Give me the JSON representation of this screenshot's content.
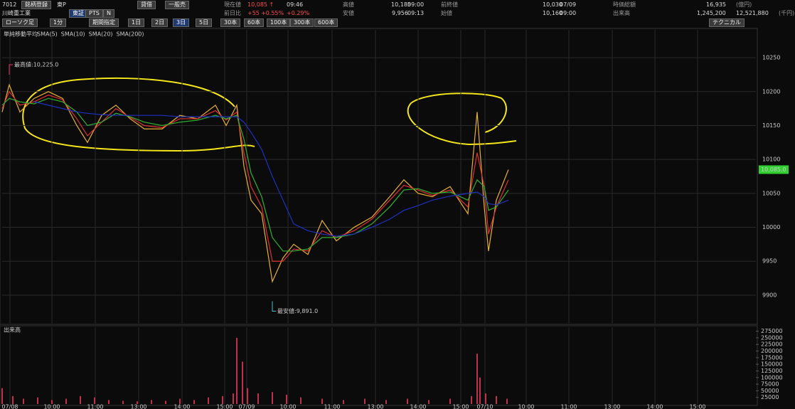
{
  "header": {
    "symbol": "7012",
    "register": "銘柄登録",
    "market": "東P",
    "name": "川崎重工業",
    "tabs": [
      "東証",
      "PTS",
      "N"
    ],
    "buttons": [
      "貸借",
      "一般売"
    ],
    "price_label": "現在値",
    "price": "10,085 ↑",
    "price_time": "09:46",
    "change_label": "前日比",
    "change": "+55",
    "change_pct": "+0.55%",
    "change_pct2": "+0.29%",
    "high_label": "高値",
    "high": "10,185",
    "high_time": "09:00",
    "low_label": "安値",
    "low": "9,956",
    "low_time": "09:13",
    "prev_label": "前終値",
    "prev": "10,030",
    "prev_date": "07/09",
    "open_label": "始値",
    "open": "10,160",
    "open_time": "09:00",
    "cap_label": "時価総額",
    "cap": "16,935",
    "cap_unit": "(億円)",
    "vol_label": "出来高",
    "vol": "1,245,200",
    "turnover": "12,521,880",
    "turnover_unit": "(千円)"
  },
  "toolbar": {
    "chart_kind": "ローソク足",
    "interval": "1分",
    "period": "期間指定",
    "ranges": [
      "1日",
      "2日",
      "3日",
      "5日",
      "30本",
      "60本",
      "100本",
      "300本",
      "600本"
    ],
    "technical": "テクニカル"
  },
  "chart_data": [
    {
      "type": "line",
      "title": "単純移動平均",
      "x": [
        0,
        10,
        25,
        45,
        65,
        85,
        105,
        120,
        140,
        160,
        180,
        200,
        225,
        250,
        275,
        300,
        315,
        330,
        340,
        350,
        365,
        380,
        395,
        410,
        430,
        450,
        470,
        495,
        520,
        545,
        565,
        585,
        605,
        630,
        655,
        668,
        678,
        684,
        695,
        712
      ],
      "series": [
        {
          "name": "SMA(5)",
          "color": "#e8b030",
          "values": [
            10170,
            10210,
            10170,
            10190,
            10200,
            10190,
            10150,
            10125,
            10165,
            10180,
            10160,
            10145,
            10145,
            10165,
            10160,
            10180,
            10150,
            10180,
            10090,
            10040,
            10020,
            9920,
            9955,
            9975,
            9960,
            10010,
            9980,
            10000,
            10015,
            10045,
            10070,
            10050,
            10045,
            10060,
            10020,
            10170,
            10030,
            9965,
            10040,
            10085
          ]
        },
        {
          "name": "SMA(10)",
          "color": "#e03030",
          "values": [
            10175,
            10200,
            10180,
            10185,
            10195,
            10188,
            10160,
            10135,
            10155,
            10175,
            10162,
            10150,
            10147,
            10160,
            10160,
            10172,
            10158,
            10170,
            10110,
            10060,
            10030,
            9950,
            9950,
            9968,
            9965,
            9995,
            9985,
            9995,
            10012,
            10040,
            10062,
            10055,
            10047,
            10055,
            10030,
            10110,
            10060,
            9990,
            10030,
            10070
          ]
        },
        {
          "name": "SMA(20)",
          "color": "#30b030",
          "values": [
            10180,
            10190,
            10185,
            10182,
            10190,
            10185,
            10170,
            10150,
            10155,
            10168,
            10163,
            10155,
            10150,
            10155,
            10158,
            10165,
            10160,
            10165,
            10130,
            10080,
            10045,
            9985,
            9965,
            9965,
            9968,
            9985,
            9985,
            9990,
            10005,
            10030,
            10055,
            10057,
            10050,
            10052,
            10040,
            10070,
            10060,
            10025,
            10030,
            10055
          ]
        },
        {
          "name": "SMA(200)",
          "color": "#2030c0",
          "values": [
            null,
            null,
            null,
            10185,
            10180,
            10175,
            10170,
            10168,
            10166,
            10165,
            10165,
            10165,
            10165,
            10163,
            10163,
            10163,
            10163,
            10163,
            10155,
            10140,
            10115,
            10075,
            10040,
            10005,
            9995,
            9990,
            9987,
            9990,
            10000,
            10012,
            10025,
            10032,
            10040,
            10046,
            10050,
            10052,
            10045,
            10035,
            10033,
            10040
          ]
        }
      ],
      "xlim": [
        0,
        1060
      ],
      "ylim": [
        9858,
        10291
      ],
      "yticks": [
        9900,
        9950,
        10000,
        10050,
        10100,
        10150,
        10200,
        10250
      ],
      "grid": true,
      "max": {
        "x": 10,
        "value": 10225,
        "label": "最高値:10,225.0"
      },
      "min": {
        "x": 380,
        "value": 9891,
        "label": "最安値:9,891.0"
      },
      "last": {
        "value": 10085,
        "label": "10,085.0"
      }
    },
    {
      "type": "bar",
      "title": "出来高",
      "color": "#c03050",
      "x": [
        0,
        15,
        30,
        50,
        70,
        90,
        110,
        130,
        150,
        170,
        190,
        210,
        230,
        250,
        270,
        290,
        310,
        325,
        330,
        338,
        345,
        360,
        380,
        400,
        420,
        450,
        480,
        510,
        540,
        570,
        600,
        630,
        660,
        668,
        672,
        680,
        695,
        710
      ],
      "values": [
        60000,
        30000,
        20000,
        25000,
        15000,
        20000,
        30000,
        25000,
        15000,
        12000,
        10000,
        15000,
        12000,
        20000,
        15000,
        25000,
        30000,
        40000,
        250000,
        160000,
        60000,
        40000,
        45000,
        35000,
        25000,
        20000,
        15000,
        20000,
        15000,
        20000,
        15000,
        20000,
        30000,
        190000,
        100000,
        40000,
        30000,
        20000
      ],
      "xlim": [
        0,
        1060
      ],
      "ylim": [
        0,
        290000
      ],
      "yticks": [
        25000,
        50000,
        75000,
        100000,
        125000,
        150000,
        175000,
        200000,
        225000,
        250000,
        275000
      ],
      "xticks": [
        {
          "value": 11,
          "label": "07/08"
        },
        {
          "value": 70,
          "label": "10:00"
        },
        {
          "value": 131,
          "label": "11:00"
        },
        {
          "value": 192,
          "label": "13:00"
        },
        {
          "value": 253,
          "label": "14:00"
        },
        {
          "value": 313,
          "label": "15:00"
        },
        {
          "value": 344,
          "label": "07/09"
        },
        {
          "value": 402,
          "label": "10:00"
        },
        {
          "value": 464,
          "label": "11:00"
        },
        {
          "value": 525,
          "label": "13:00"
        },
        {
          "value": 585,
          "label": "14:00"
        },
        {
          "value": 645,
          "label": "15:00"
        },
        {
          "value": 679,
          "label": "07/10"
        },
        {
          "value": 737,
          "label": "10:00"
        },
        {
          "value": 797,
          "label": "11:00"
        },
        {
          "value": 858,
          "label": "13:00"
        },
        {
          "value": 918,
          "label": "14:00"
        },
        {
          "value": 978,
          "label": "15:00"
        }
      ]
    }
  ]
}
